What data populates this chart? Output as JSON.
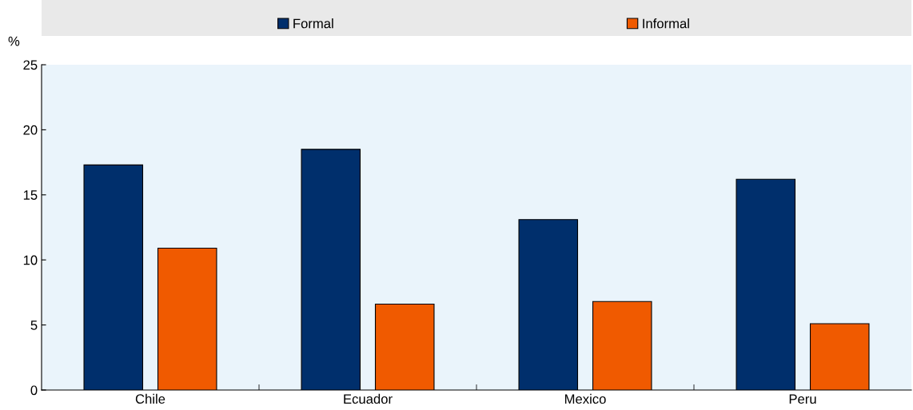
{
  "chart_data": {
    "type": "bar",
    "ylabel": "%",
    "categories": [
      "Chile",
      "Ecuador",
      "Mexico",
      "Peru"
    ],
    "series": [
      {
        "name": "Formal",
        "color": "#002f6c",
        "values": [
          17.3,
          18.5,
          13.1,
          16.2
        ]
      },
      {
        "name": "Informal",
        "color": "#f05a00",
        "values": [
          10.9,
          6.6,
          6.8,
          5.1
        ]
      }
    ],
    "ylim": [
      0,
      25
    ],
    "yticks": [
      0,
      5,
      10,
      15,
      20,
      25
    ],
    "grid": false,
    "legend": "top"
  }
}
